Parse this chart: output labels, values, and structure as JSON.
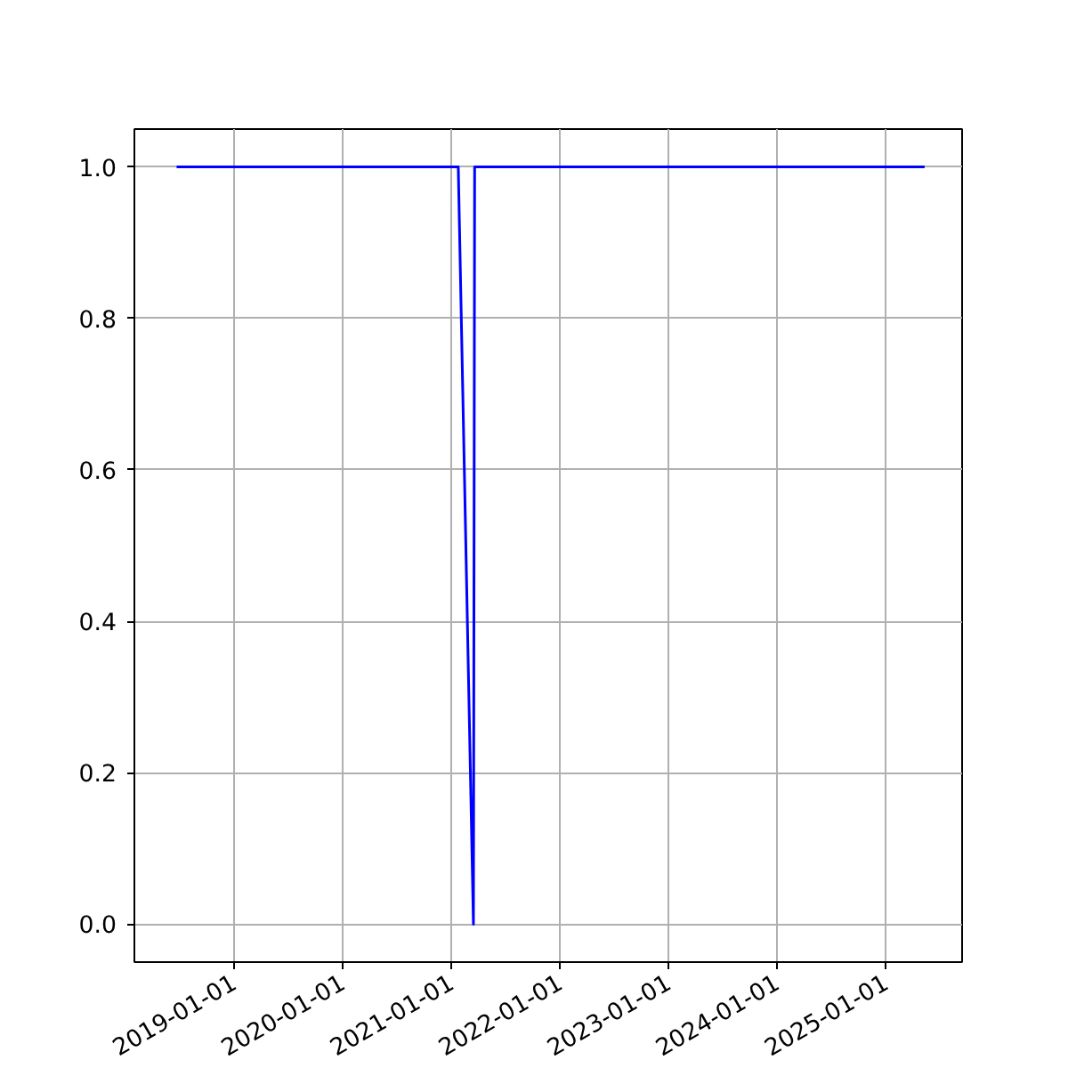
{
  "chart_data": {
    "type": "line",
    "x": [
      "2018-06-23",
      "2021-01-25",
      "2021-03-17",
      "2021-03-21",
      "2025-05-12"
    ],
    "series": [
      {
        "color": "#0000ff",
        "values": [
          1,
          1,
          0,
          1,
          1
        ]
      }
    ],
    "xlim": [
      "2018-02-01",
      "2025-09-15"
    ],
    "xticks": [
      "2019-01-01",
      "2020-01-01",
      "2021-01-01",
      "2022-01-01",
      "2023-01-01",
      "2024-01-01",
      "2025-01-01"
    ],
    "ylim": [
      -0.05,
      1.05
    ],
    "yticks": [
      {
        "value": 0,
        "label": "0.0"
      },
      {
        "value": 0.2,
        "label": "0.2"
      },
      {
        "value": 0.4,
        "label": "0.4"
      },
      {
        "value": 0.6,
        "label": "0.6"
      },
      {
        "value": 0.8,
        "label": "0.8"
      },
      {
        "value": 1,
        "label": "1.0"
      }
    ],
    "grid": true,
    "marker": "none",
    "line_style": "solid"
  }
}
